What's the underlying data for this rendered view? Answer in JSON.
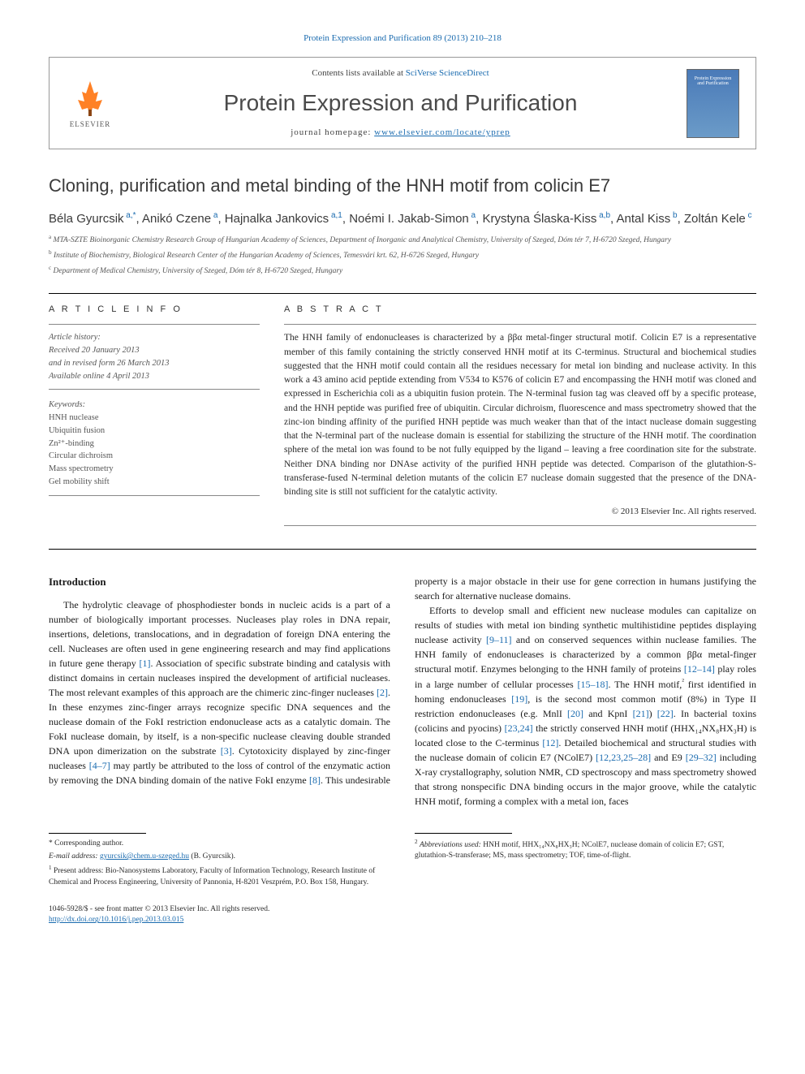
{
  "journal_ref": "Protein Expression and Purification 89 (2013) 210–218",
  "header": {
    "contents_prefix": "Contents lists available at ",
    "contents_link": "SciVerse ScienceDirect",
    "journal_name": "Protein Expression and Purification",
    "homepage_prefix": "journal homepage: ",
    "homepage_link": "www.elsevier.com/locate/yprep",
    "publisher": "ELSEVIER",
    "cover_text": "Protein Expression and Purification",
    "logo_color": "#ff6b00",
    "box_border": "#999999"
  },
  "article": {
    "title": "Cloning, purification and metal binding of the HNH motif from colicin E7",
    "authors_html": "Béla Gyurcsik<sup> a,*</sup>, Anikó Czene<sup> a</sup>, Hajnalka Jankovics<sup> a,1</sup>, Noémi I. Jakab-Simon<sup> a</sup>, Krystyna Ślaska-Kiss<sup> a,b</sup>, Antal Kiss<sup> b</sup>, Zoltán Kele<sup> c</sup>"
  },
  "affiliations": [
    {
      "label": "a",
      "text": "MTA-SZTE Bioinorganic Chemistry Research Group of Hungarian Academy of Sciences, Department of Inorganic and Analytical Chemistry, University of Szeged, Dóm tér 7, H-6720 Szeged, Hungary"
    },
    {
      "label": "b",
      "text": "Institute of Biochemistry, Biological Research Center of the Hungarian Academy of Sciences, Temesvári krt. 62, H-6726 Szeged, Hungary"
    },
    {
      "label": "c",
      "text": "Department of Medical Chemistry, University of Szeged, Dóm tér 8, H-6720 Szeged, Hungary"
    }
  ],
  "article_info": {
    "header": "A R T I C L E   I N F O",
    "history_label": "Article history:",
    "received": "Received 20 January 2013",
    "revised": "and in revised form 26 March 2013",
    "online": "Available online 4 April 2013",
    "keywords_label": "Keywords:",
    "keywords": [
      "HNH nuclease",
      "Ubiquitin fusion",
      "Zn²⁺-binding",
      "Circular dichroism",
      "Mass spectrometry",
      "Gel mobility shift"
    ]
  },
  "abstract": {
    "header": "A B S T R A C T",
    "text": "The HNH family of endonucleases is characterized by a ββα metal-finger structural motif. Colicin E7 is a representative member of this family containing the strictly conserved HNH motif at its C-terminus. Structural and biochemical studies suggested that the HNH motif could contain all the residues necessary for metal ion binding and nuclease activity. In this work a 43 amino acid peptide extending from V534 to K576 of colicin E7 and encompassing the HNH motif was cloned and expressed in Escherichia coli as a ubiquitin fusion protein. The N-terminal fusion tag was cleaved off by a specific protease, and the HNH peptide was purified free of ubiquitin. Circular dichroism, fluorescence and mass spectrometry showed that the zinc-ion binding affinity of the purified HNH peptide was much weaker than that of the intact nuclease domain suggesting that the N-terminal part of the nuclease domain is essential for stabilizing the structure of the HNH motif. The coordination sphere of the metal ion was found to be not fully equipped by the ligand – leaving a free coordination site for the substrate. Neither DNA binding nor DNAse activity of the purified HNH peptide was detected. Comparison of the glutathion-S-transferase-fused N-terminal deletion mutants of the colicin E7 nuclease domain suggested that the presence of the DNA-binding site is still not sufficient for the catalytic activity.",
    "copyright": "© 2013 Elsevier Inc. All rights reserved."
  },
  "intro": {
    "heading": "Introduction",
    "para1_pre": "The hydrolytic cleavage of phosphodiester bonds in nucleic acids is a part of a number of biologically important processes. Nucleases play roles in DNA repair, insertions, deletions, translocations, and in degradation of foreign DNA entering the cell. Nucleases are often used in gene engineering research and may find applications in future gene therapy ",
    "ref1": "[1]",
    "para1_mid1": ". Association of specific substrate binding and catalysis with distinct domains in certain nucleases inspired the development of artificial nucleases. The most relevant examples of this approach are the chimeric zinc-finger nucleases ",
    "ref2": "[2]",
    "para1_mid2": ". In these enzymes zinc-finger arrays recognize specific DNA sequences and the nuclease domain of the FokI restriction endonuclease acts as a catalytic domain. The FokI nuclease domain, by itself, is a non-specific nuclease cleaving double stranded DNA upon dimerization on the substrate ",
    "ref3": "[3]",
    "para1_mid3": ". Cytotoxicity displayed by zinc-finger nucleases ",
    "ref47": "[4–7]",
    "para1_mid4": " may partly be attributed to the loss of control of the enzymatic action by removing the DNA binding domain of the native FokI enzyme ",
    "ref8": "[8]",
    "para1_end": ". This undesirable property is a major obstacle in their use for gene correction in humans justifying the search for alternative nuclease domains.",
    "para2_pre": "Efforts to develop small and efficient new nuclease modules can capitalize on results of studies with metal ion binding synthetic multihistidine peptides displaying nuclease activity ",
    "ref911": "[9–11]",
    "para2_mid1": " and on conserved sequences within nuclease families. The HNH family of endonucleases is characterized by a common ββα metal-finger structural motif. Enzymes belonging to the HNH family of proteins ",
    "ref1214": "[12–14]",
    "para2_mid2": " play roles in a large number of cellular processes ",
    "ref1518": "[15–18]",
    "para2_mid3": ". The HNH motif,",
    "fn2mark": "²",
    "para2_mid3b": " first identified in homing endonucleases ",
    "ref19": "[19]",
    "para2_mid4": ", is the second most common motif (8%) in Type II restriction endonucleases (e.g. MnlI ",
    "ref20": "[20]",
    "para2_mid5": " and KpnI ",
    "ref21": "[21]",
    "para2_mid5b": ") ",
    "ref22": "[22]",
    "para2_mid6": ". In bacterial toxins (colicins and pyocins) ",
    "ref2324": "[23,24]",
    "para2_mid7": " the strictly conserved HNH motif (HHX₁₄NX₈HX₃H) is located close to the C-terminus ",
    "ref12": "[12]",
    "para2_mid8": ". Detailed biochemical and structural studies with the nuclease domain of colicin E7 (NColE7) ",
    "ref122328": "[12,23,25–28]",
    "para2_mid9": " and E9 ",
    "ref2932": "[29–32]",
    "para2_end": " including X-ray crystallography, solution NMR, CD spectroscopy and mass spectrometry showed that strong nonspecific DNA binding occurs in the major groove, while the catalytic HNH motif, forming a complex with a metal ion, faces"
  },
  "footnotes": {
    "corr_mark": "*",
    "corr_text": " Corresponding author.",
    "email_label": "E-mail address: ",
    "email": "gyurcsik@chem.u-szeged.hu",
    "email_suffix": " (B. Gyurcsik).",
    "fn1_mark": "1",
    "fn1_text": " Present address: Bio-Nanosystems Laboratory, Faculty of Information Technology, Research Institute of Chemical and Process Engineering, University of Pannonia, H-8201 Veszprém, P.O. Box 158, Hungary.",
    "fn2_mark": "2",
    "fn2_label": "Abbreviations used:",
    "fn2_text": " HNH motif, HHX₁₄NX₈HX₃H; NColE7, nuclease domain of colicin E7; GST, glutathion-S-transferase; MS, mass spectrometry; TOF, time-of-flight."
  },
  "footer": {
    "issn_line": "1046-5928/$ - see front matter © 2013 Elsevier Inc. All rights reserved.",
    "doi": "http://dx.doi.org/10.1016/j.pep.2013.03.015"
  },
  "colors": {
    "link": "#1a6baf",
    "text": "#1a1a1a",
    "grey": "#555555",
    "orange": "#ff6b00"
  }
}
